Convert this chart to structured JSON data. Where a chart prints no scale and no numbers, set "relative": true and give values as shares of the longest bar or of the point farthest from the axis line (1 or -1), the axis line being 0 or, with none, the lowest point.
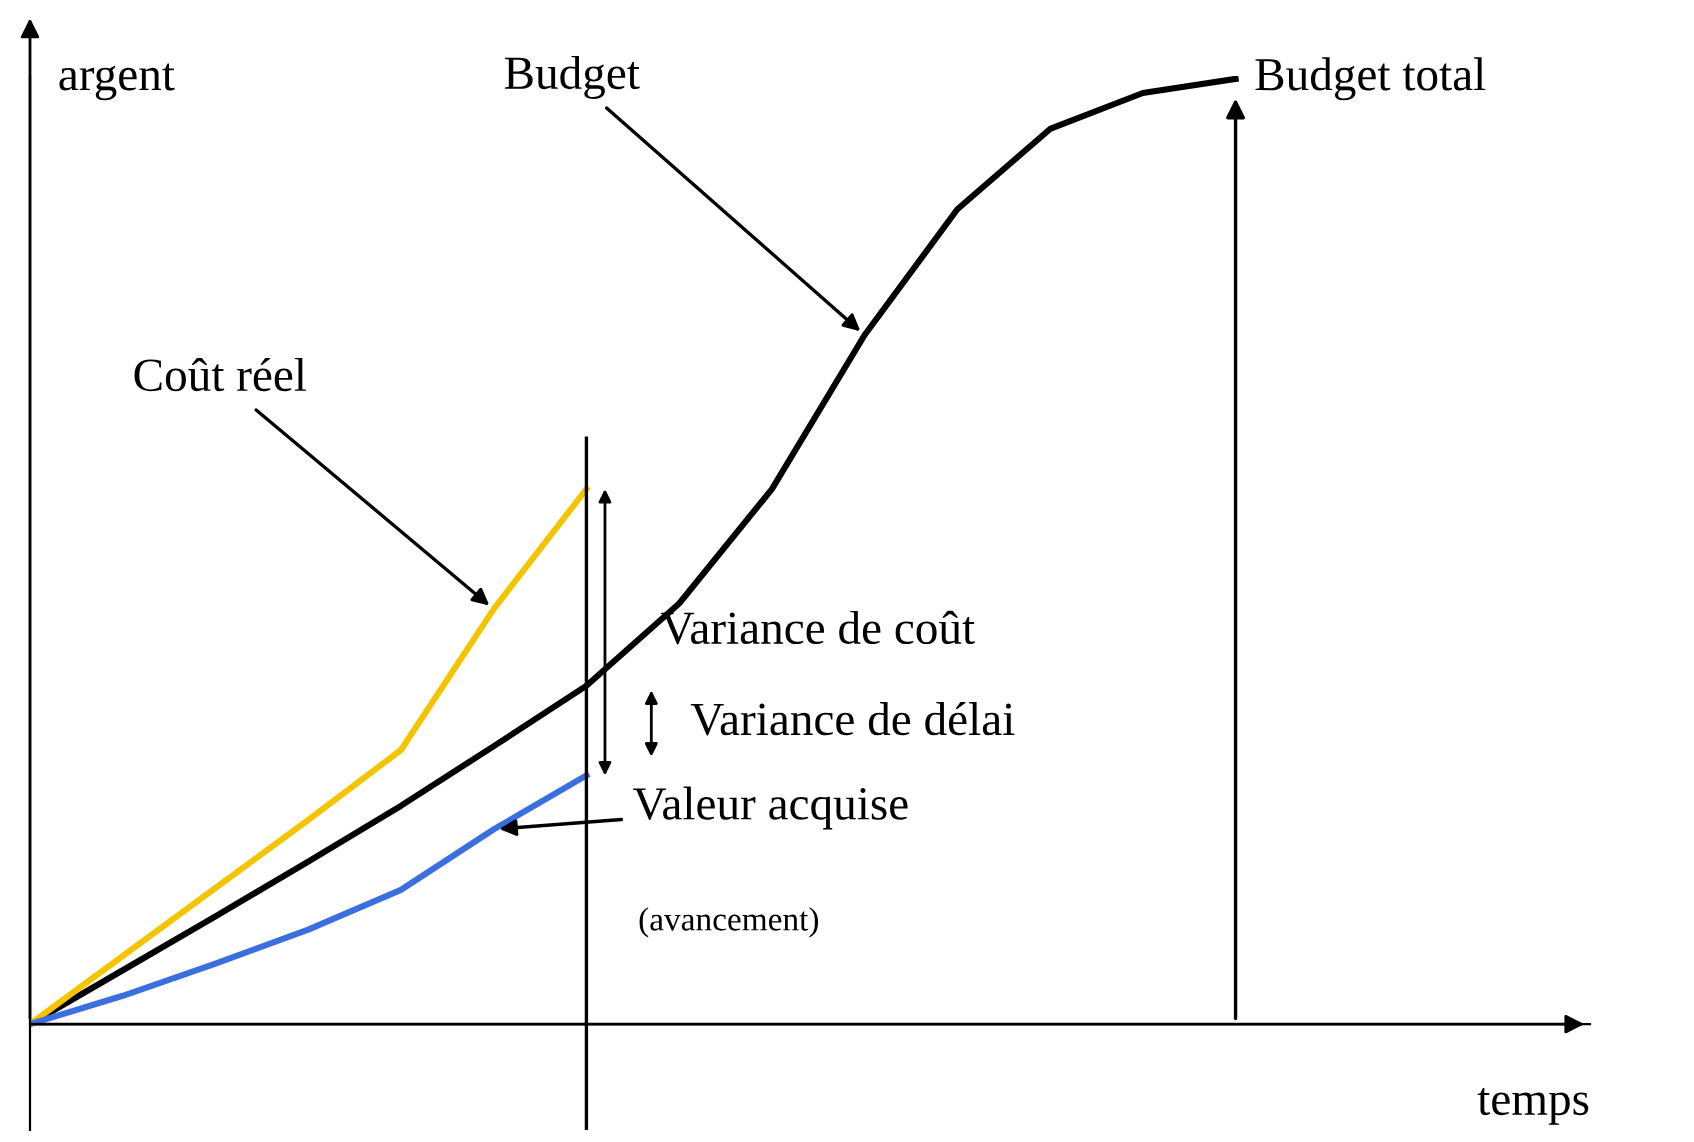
{
  "chart_data": {
    "type": "line",
    "relative": true,
    "xlabel": "temps",
    "ylabel": "argent",
    "categories": [
      null,
      null,
      null,
      null,
      null,
      null,
      null,
      null,
      null,
      null,
      null,
      null,
      null,
      null
    ],
    "series": [
      {
        "color": "#000000",
        "values": [
          0,
          0.057,
          0.114,
          0.172,
          0.231,
          0.294,
          0.358,
          0.445,
          0.566,
          0.729,
          0.862,
          0.947,
          0.985,
          1
        ]
      },
      {
        "color": "#f5c400",
        "values": [
          0,
          0.072,
          0.144,
          0.216,
          0.29,
          0.439,
          0.566,
          null,
          null,
          null,
          null,
          null,
          null,
          null
        ]
      },
      {
        "color": "#3a6fe0",
        "values": [
          0,
          0.03,
          0.064,
          0.1,
          0.142,
          0.206,
          0.263,
          null,
          null,
          null,
          null,
          null,
          null,
          null
        ]
      }
    ],
    "annotations": [
      "Budget",
      "Coût réel",
      "Valeur acquise",
      "(avancement)",
      "Variance de coût",
      "Variance de délai",
      "Budget total"
    ],
    "marker": "none",
    "line_style": "solid"
  }
}
